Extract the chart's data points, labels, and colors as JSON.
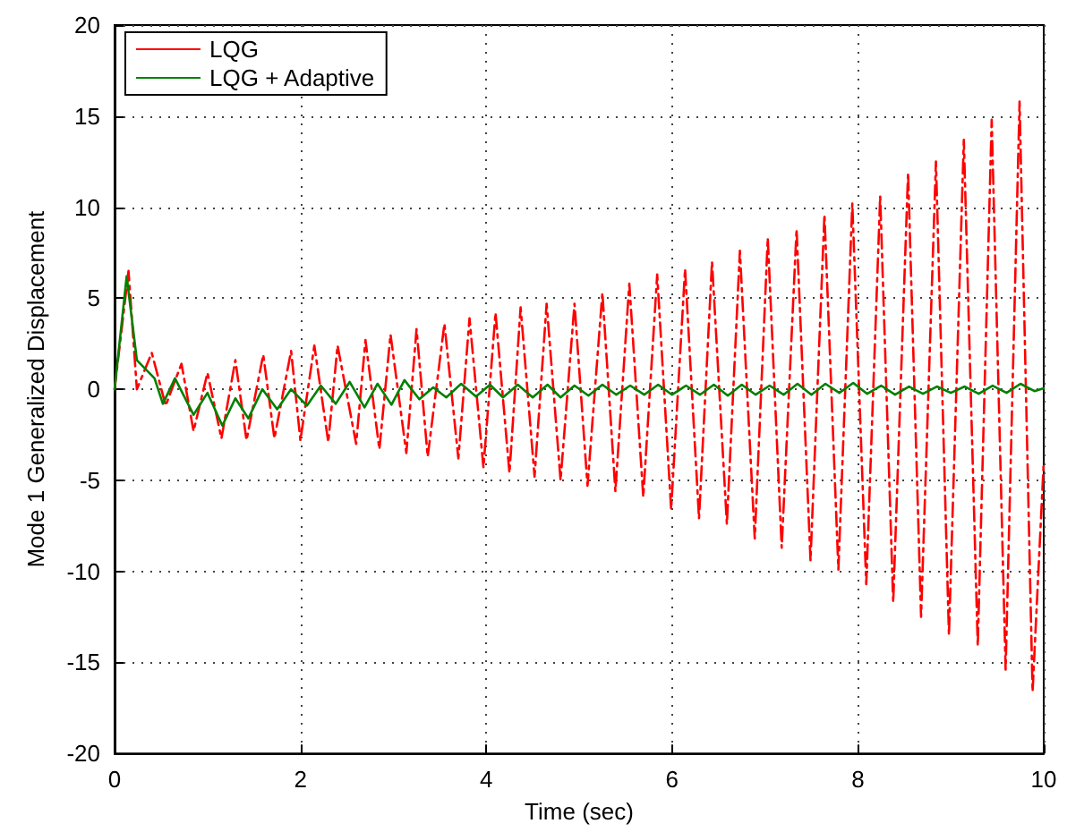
{
  "chart_data": {
    "type": "line",
    "xlabel": "Time (sec)",
    "ylabel": "Mode 1 Generalized Displacement",
    "xlim": [
      0,
      10
    ],
    "ylim": [
      -20,
      20
    ],
    "xticks": [
      0,
      2,
      4,
      6,
      8,
      10
    ],
    "yticks": [
      -20,
      -15,
      -10,
      -5,
      0,
      5,
      10,
      15,
      20
    ],
    "grid": true,
    "legend": "top left",
    "series": [
      {
        "name": "LQG",
        "color": "#ff0000",
        "line_style": "dashed",
        "x": [
          0,
          0.15,
          0.24,
          0.4,
          0.55,
          0.72,
          0.85,
          1.0,
          1.15,
          1.3,
          1.42,
          1.6,
          1.72,
          1.9,
          2.0,
          2.15,
          2.3,
          2.4,
          2.6,
          2.7,
          2.85,
          2.97,
          3.14,
          3.25,
          3.37,
          3.55,
          3.7,
          3.82,
          3.97,
          4.1,
          4.25,
          4.37,
          4.52,
          4.65,
          4.8,
          4.95,
          5.09,
          5.25,
          5.39,
          5.54,
          5.69,
          5.84,
          5.99,
          6.14,
          6.29,
          6.43,
          6.59,
          6.73,
          6.89,
          7.03,
          7.18,
          7.34,
          7.49,
          7.64,
          7.79,
          7.94,
          8.09,
          8.24,
          8.38,
          8.54,
          8.68,
          8.84,
          8.98,
          9.14,
          9.29,
          9.44,
          9.59,
          9.74,
          9.88,
          10
        ],
        "values": [
          0,
          6.5,
          0,
          2.0,
          -0.9,
          1.4,
          -2.3,
          0.9,
          -2.7,
          1.6,
          -2.8,
          1.9,
          -2.7,
          2.1,
          -2.8,
          2.4,
          -2.9,
          2.4,
          -3.0,
          2.7,
          -3.3,
          3.0,
          -3.5,
          3.3,
          -3.7,
          3.6,
          -3.8,
          3.9,
          -4.3,
          4.2,
          -4.6,
          4.5,
          -4.8,
          4.7,
          -5.0,
          4.7,
          -5.3,
          5.3,
          -5.6,
          5.8,
          -5.9,
          6.3,
          -6.6,
          6.6,
          -7.1,
          7.0,
          -7.4,
          7.6,
          -8.2,
          8.3,
          -8.7,
          8.8,
          -9.4,
          9.6,
          -9.9,
          10.2,
          -10.7,
          10.6,
          -11.7,
          11.9,
          -12.5,
          12.5,
          -13.5,
          13.7,
          -14.1,
          14.8,
          -15.4,
          15.8,
          -16.6,
          -4
        ]
      },
      {
        "name": "LQG + Adaptive",
        "color": "#008000",
        "line_style": "solid",
        "x": [
          0,
          0.13,
          0.24,
          0.43,
          0.52,
          0.65,
          0.85,
          1.0,
          1.16,
          1.3,
          1.44,
          1.59,
          1.75,
          1.9,
          2.07,
          2.22,
          2.38,
          2.53,
          2.69,
          2.83,
          2.98,
          3.12,
          3.28,
          3.43,
          3.57,
          3.73,
          3.89,
          4.04,
          4.18,
          4.34,
          4.5,
          4.66,
          4.8,
          4.95,
          5.1,
          5.25,
          5.4,
          5.55,
          5.7,
          5.85,
          6.0,
          6.15,
          6.3,
          6.45,
          6.6,
          6.75,
          6.9,
          7.05,
          7.2,
          7.35,
          7.5,
          7.65,
          7.8,
          7.95,
          8.1,
          8.25,
          8.4,
          8.55,
          8.7,
          8.85,
          9.0,
          9.15,
          9.3,
          9.45,
          9.6,
          9.75,
          9.9,
          10
        ],
        "values": [
          0,
          6.2,
          1.6,
          0.6,
          -0.8,
          0.6,
          -1.4,
          -0.2,
          -2.0,
          -0.5,
          -1.6,
          0.0,
          -1.1,
          0.0,
          -0.9,
          0.2,
          -0.8,
          0.4,
          -1.0,
          0.3,
          -0.85,
          0.5,
          -0.55,
          0.1,
          -0.45,
          0.3,
          -0.4,
          0.25,
          -0.45,
          0.25,
          -0.45,
          0.25,
          -0.45,
          0.2,
          -0.35,
          0.25,
          -0.3,
          0.2,
          -0.3,
          0.25,
          -0.3,
          0.2,
          -0.3,
          0.25,
          -0.35,
          0.25,
          -0.3,
          0.2,
          -0.3,
          0.3,
          -0.3,
          0.3,
          -0.2,
          0.35,
          -0.25,
          0.2,
          -0.3,
          0.15,
          -0.25,
          0.15,
          -0.2,
          0.15,
          -0.25,
          0.2,
          -0.2,
          0.3,
          -0.1,
          0.05
        ]
      }
    ]
  }
}
